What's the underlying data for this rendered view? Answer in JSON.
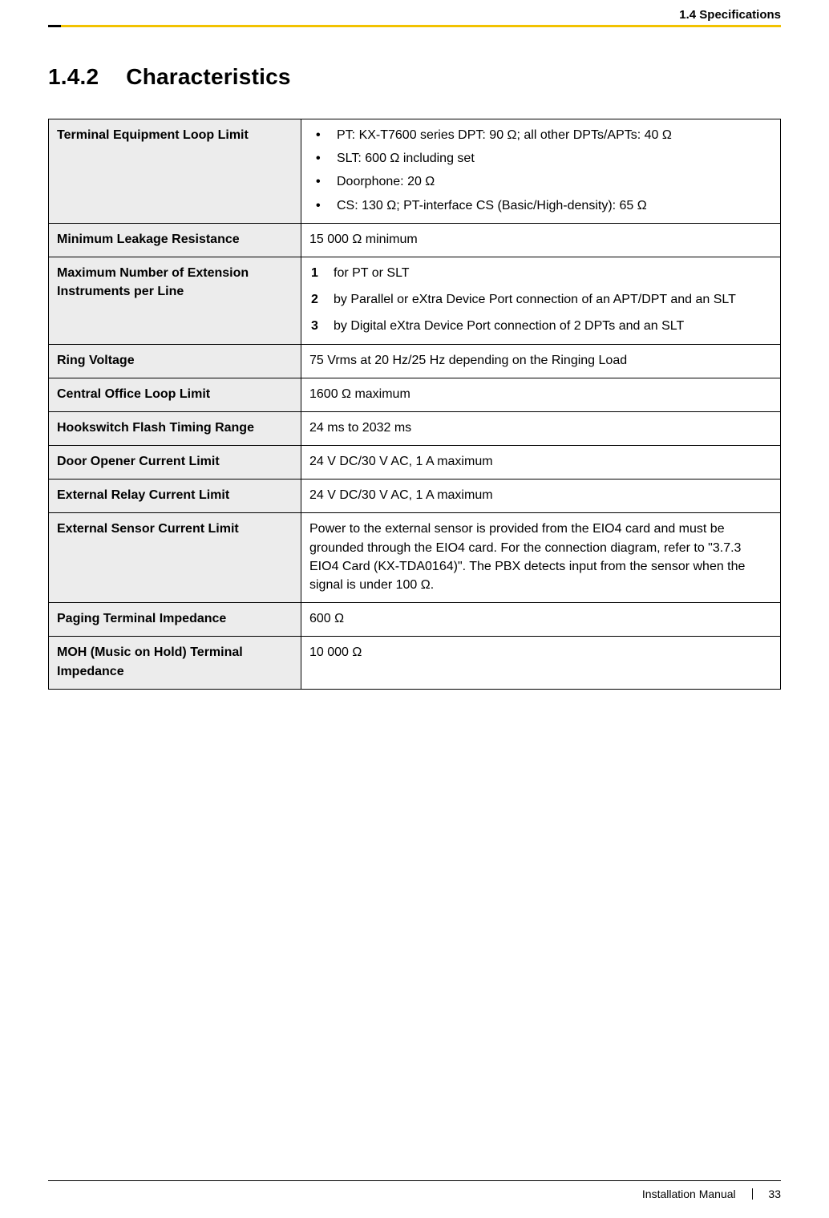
{
  "header": {
    "section_ref": "1.4 Specifications"
  },
  "section": {
    "number": "1.4.2",
    "title": "Characteristics"
  },
  "table": {
    "columns": [
      "label",
      "value"
    ],
    "rows": [
      {
        "label": "Terminal Equipment Loop Limit",
        "type": "bullets",
        "items": [
          "PT: KX-T7600 series DPT: 90 Ω; all other DPTs/APTs: 40 Ω",
          "SLT: 600 Ω including set",
          "Doorphone: 20 Ω",
          "CS: 130 Ω; PT-interface CS (Basic/High-density): 65 Ω"
        ]
      },
      {
        "label": "Minimum Leakage Resistance",
        "type": "text",
        "value": "15 000 Ω minimum"
      },
      {
        "label": "Maximum Number of Extension Instruments per Line",
        "type": "numbered",
        "items": [
          "for PT or SLT",
          "by Parallel or eXtra Device Port connection of an APT/DPT and an SLT",
          "by Digital eXtra Device Port connection of 2 DPTs and an SLT"
        ]
      },
      {
        "label": "Ring Voltage",
        "type": "text",
        "value": "75 Vrms at 20 Hz/25 Hz depending on the Ringing Load"
      },
      {
        "label": "Central Office Loop Limit",
        "type": "text",
        "value": "1600 Ω maximum"
      },
      {
        "label": "Hookswitch Flash Timing Range",
        "type": "text",
        "value": "24 ms to 2032 ms"
      },
      {
        "label": "Door Opener Current Limit",
        "type": "text",
        "value": "24 V DC/30 V AC, 1 A maximum"
      },
      {
        "label": "External Relay Current Limit",
        "type": "text",
        "value": "24 V DC/30 V AC, 1 A maximum"
      },
      {
        "label": "External Sensor Current Limit",
        "type": "text",
        "value": "Power to the external sensor is provided from the EIO4 card and must be grounded through the EIO4 card. For the connection diagram, refer to \"3.7.3 EIO4 Card (KX-TDA0164)\". The PBX detects input from the sensor when the signal is under 100 Ω."
      },
      {
        "label": "Paging Terminal Impedance",
        "type": "text",
        "value": "600 Ω"
      },
      {
        "label": "MOH (Music on Hold) Terminal Impedance",
        "type": "text",
        "value": "10 000 Ω"
      }
    ]
  },
  "footer": {
    "doc_title": "Installation Manual",
    "page_number": "33"
  },
  "colors": {
    "accent_yellow": "#f2c200",
    "label_bg": "#ececec",
    "border": "#000000",
    "text": "#000000",
    "background": "#ffffff"
  }
}
